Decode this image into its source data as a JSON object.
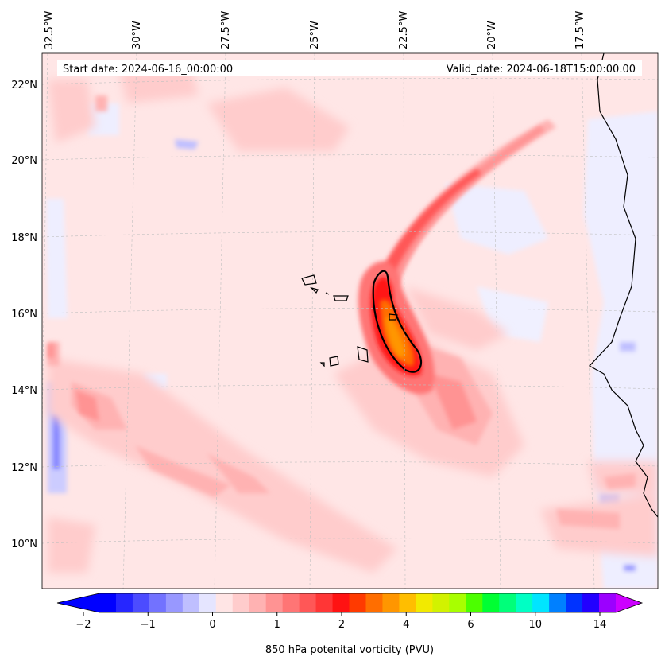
{
  "map": {
    "start_date": "Start date: 2024-06-16_00:00:00",
    "valid_date": "Valid_date: 2024-06-18T15:00:00.00",
    "lon_labels": [
      "32.5°W",
      "30°W",
      "27.5°W",
      "25°W",
      "22.5°W",
      "20°W",
      "17.5°W"
    ],
    "lat_labels": [
      "22°N",
      "20°N",
      "18°N",
      "16°N",
      "14°N",
      "12°N",
      "10°N"
    ],
    "gridlines": true
  },
  "colorbar": {
    "label": "850 hPa potenital vorticity (PVU)",
    "tick_labels": [
      "−2",
      "−1",
      "0",
      "1",
      "2",
      "4",
      "6",
      "10",
      "14"
    ],
    "tick_values": [
      -2,
      -1,
      0,
      1,
      2,
      4,
      6,
      10,
      14
    ],
    "extend": "both",
    "colors": [
      "#0000ff",
      "#2626ff",
      "#4c4cff",
      "#7272ff",
      "#9898ff",
      "#bfbfff",
      "#e5e5ff",
      "#ffe5e5",
      "#ffcccc",
      "#ffb2b2",
      "#ff9393",
      "#ff7575",
      "#ff5757",
      "#ff3636",
      "#ff1212",
      "#ff3a00",
      "#ff6e00",
      "#ff9600",
      "#ffbe00",
      "#f2ea00",
      "#d2f200",
      "#a8ff00",
      "#4cff00",
      "#00ff33",
      "#00ff7a",
      "#00ffc4",
      "#00e5ff",
      "#0080ff",
      "#0033ff",
      "#2200ff",
      "#9b00ff"
    ],
    "under_color": "#0000ff",
    "over_color": "#cc00ff"
  }
}
